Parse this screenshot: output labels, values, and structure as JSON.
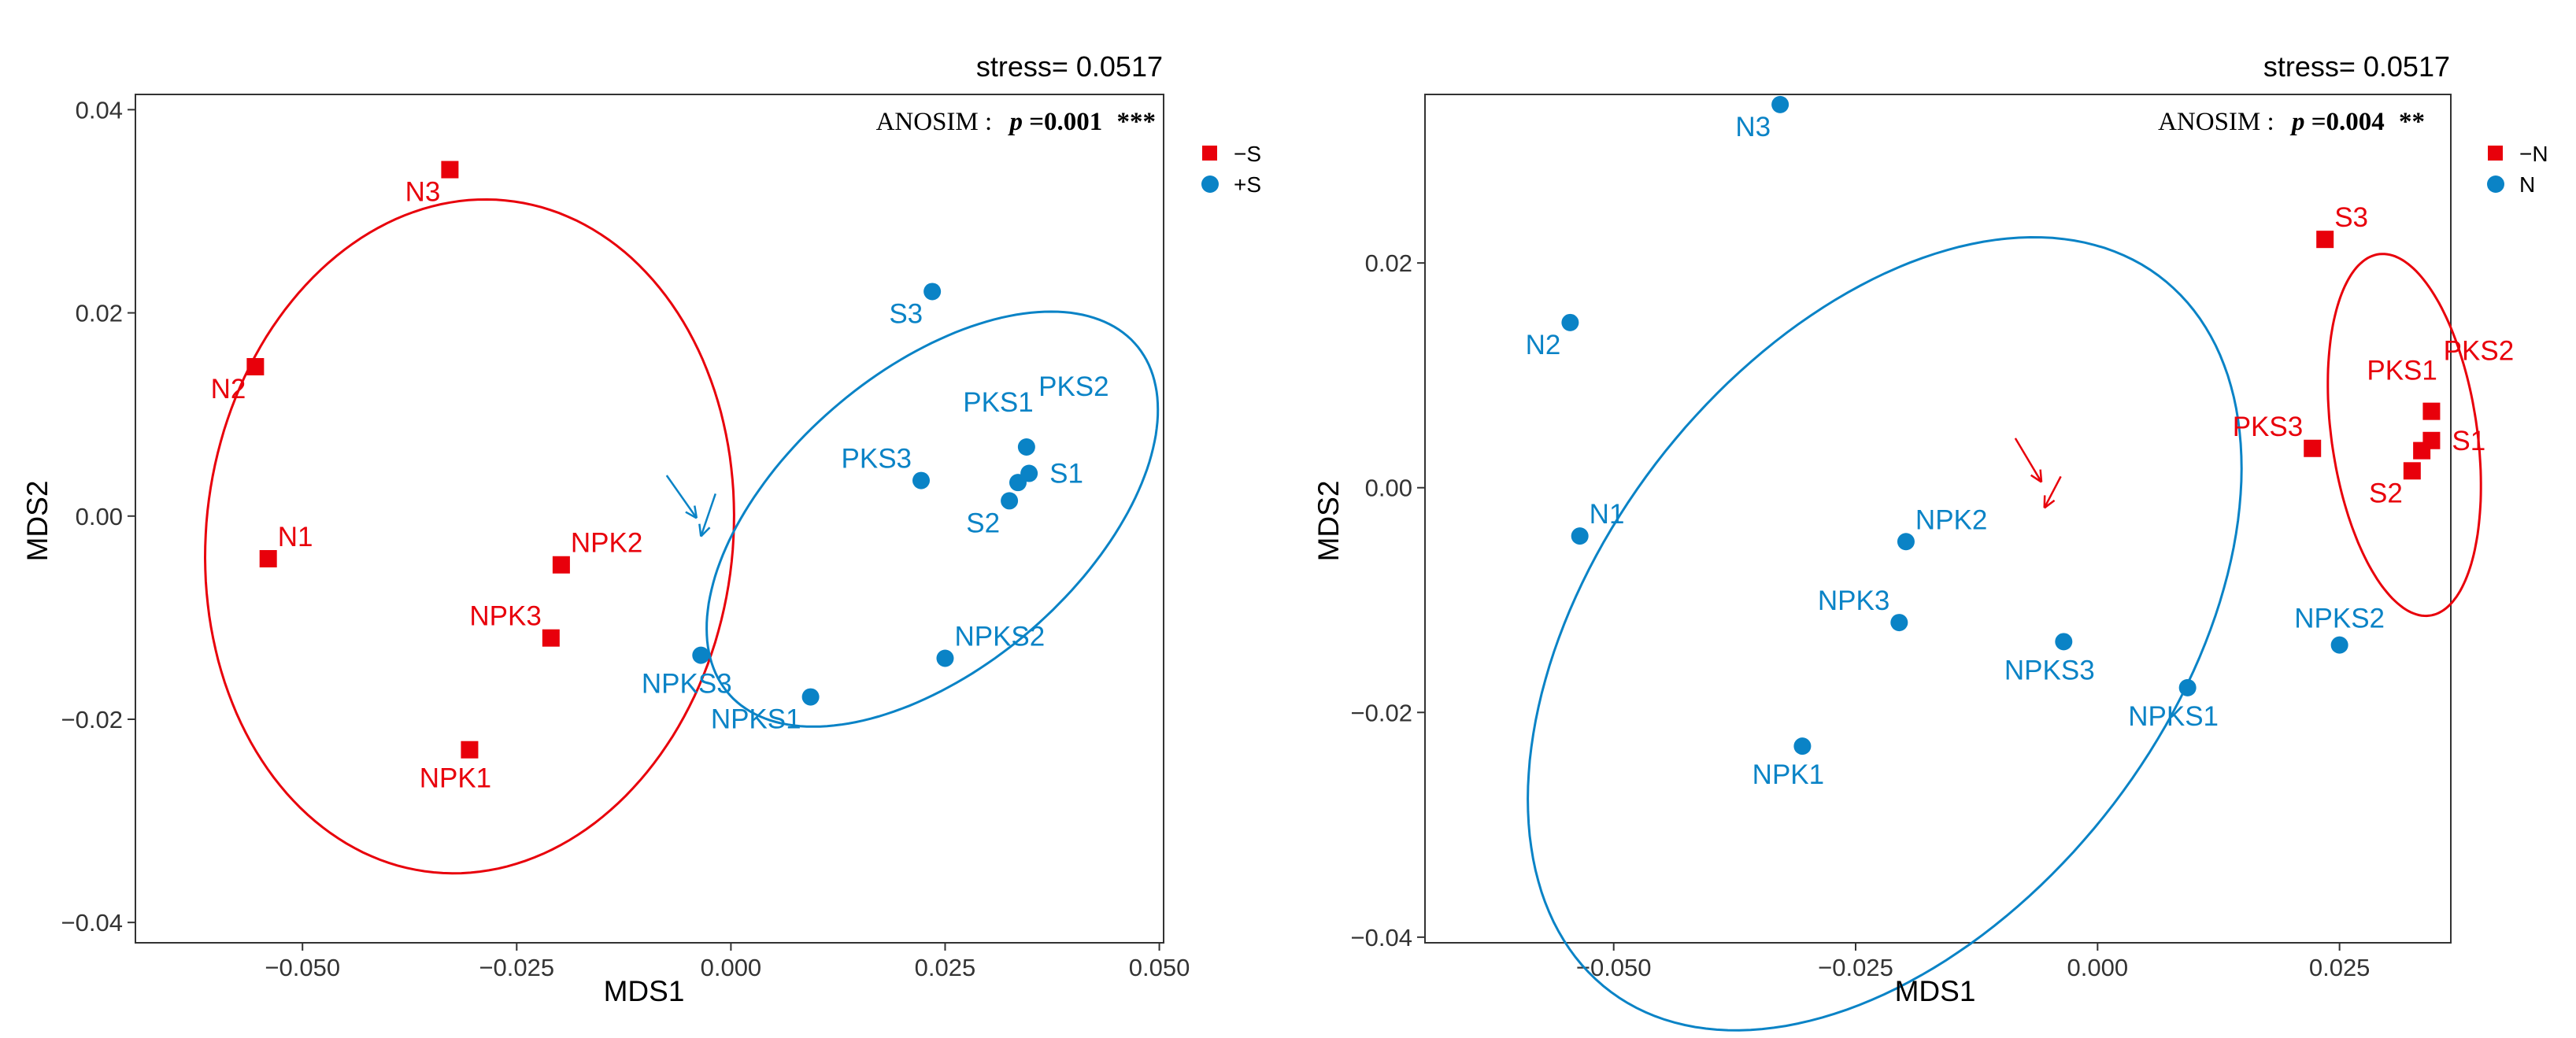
{
  "chart_data": [
    {
      "type": "scatter",
      "subtype": "NMDS",
      "stress_label": "stress= 0.0517",
      "anosim": {
        "prefix": "ANOSIM :",
        "p_symbol": "p",
        "p_text": "=0.001",
        "stars": "***"
      },
      "xlabel": "MDS1",
      "ylabel": "MDS2",
      "xlim": [
        -0.0695,
        0.0505
      ],
      "ylim": [
        -0.042,
        0.0415
      ],
      "xticks": [
        -0.05,
        -0.025,
        0.0,
        0.025,
        0.05
      ],
      "xtick_labels": [
        "−0.050",
        "−0.025",
        "0.000",
        "0.025",
        "0.050"
      ],
      "yticks": [
        -0.04,
        -0.02,
        0.0,
        0.02,
        0.04
      ],
      "ytick_labels": [
        "−0.04",
        "−0.02",
        "0.00",
        "0.02",
        "0.04"
      ],
      "legend_position": "right",
      "groups": [
        {
          "name": "−S",
          "color": "#e8000b",
          "shape": "square",
          "ellipse": {
            "cx": -0.0305,
            "cy": -0.002,
            "rx": 0.0335,
            "ry": 0.0305,
            "angle": -110
          },
          "points": [
            {
              "label": "N1",
              "x": -0.054,
              "y": -0.0042,
              "label_pos": "upper-right"
            },
            {
              "label": "N2",
              "x": -0.0555,
              "y": 0.0147,
              "label_pos": "lower-left"
            },
            {
              "label": "N3",
              "x": -0.0328,
              "y": 0.0341,
              "label_pos": "lower-left"
            },
            {
              "label": "NPK1",
              "x": -0.0305,
              "y": -0.023,
              "label_pos": "below"
            },
            {
              "label": "NPK2",
              "x": -0.0198,
              "y": -0.0048,
              "label_pos": "upper-right"
            },
            {
              "label": "NPK3",
              "x": -0.021,
              "y": -0.012,
              "label_pos": "upper-left"
            }
          ]
        },
        {
          "name": "+S",
          "color": "#0a83c6",
          "shape": "circle",
          "ellipse": {
            "cx": 0.0235,
            "cy": -0.0003,
            "rx": 0.0295,
            "ry": 0.0155,
            "angle": 32
          },
          "points": [
            {
              "label": "S1",
              "x": 0.0348,
              "y": 0.0042,
              "label_pos": "right"
            },
            {
              "label": "S2",
              "x": 0.0325,
              "y": 0.0015,
              "label_pos": "lower-left"
            },
            {
              "label": "S3",
              "x": 0.0235,
              "y": 0.0221,
              "label_pos": "lower-left"
            },
            {
              "label": "PKS1",
              "x": 0.0335,
              "y": 0.0033,
              "label_pos": "far-upper-left"
            },
            {
              "label": "PKS2",
              "x": 0.0345,
              "y": 0.0068,
              "label_pos": "far-upper-right"
            },
            {
              "label": "PKS3",
              "x": 0.0222,
              "y": 0.0035,
              "label_pos": "upper-left"
            },
            {
              "label": "NPKS1",
              "x": 0.0093,
              "y": -0.0178,
              "label_pos": "lower-left"
            },
            {
              "label": "NPKS2",
              "x": 0.025,
              "y": -0.014,
              "label_pos": "upper-right"
            },
            {
              "label": "NPKS3",
              "x": -0.0035,
              "y": -0.0137,
              "label_pos": "below"
            }
          ]
        }
      ],
      "arrows": [
        {
          "color": "#0a83c6",
          "from": [
            -0.0075,
            0.004
          ],
          "to": [
            -0.004,
            -0.0002
          ]
        },
        {
          "color": "#0a83c6",
          "from": [
            -0.0018,
            0.0022
          ],
          "to": [
            -0.0035,
            -0.002
          ]
        }
      ]
    },
    {
      "type": "scatter",
      "subtype": "NMDS",
      "stress_label": "stress= 0.0517",
      "anosim": {
        "prefix": "ANOSIM :",
        "p_symbol": "p",
        "p_text": "=0.004",
        "stars": "**"
      },
      "xlabel": "MDS1",
      "ylabel": "MDS2",
      "xlim": [
        -0.0695,
        0.0365
      ],
      "ylim": [
        -0.0405,
        0.035
      ],
      "xticks": [
        -0.05,
        -0.025,
        0.0,
        0.025
      ],
      "xtick_labels": [
        "−0.050",
        "−0.025",
        "0.000",
        "0.025"
      ],
      "yticks": [
        -0.04,
        -0.02,
        0.0,
        0.02
      ],
      "ytick_labels": [
        "−0.04",
        "−0.02",
        "0.00",
        "0.02"
      ],
      "legend_position": "right",
      "groups": [
        {
          "name": "−N",
          "color": "#e8000b",
          "shape": "square",
          "ellipse": {
            "cx": 0.0317,
            "cy": 0.0047,
            "rx": 0.0163,
            "ry": 0.0075,
            "angle": -80
          },
          "points": [
            {
              "label": "S1",
              "x": 0.0345,
              "y": 0.0042,
              "label_pos": "right"
            },
            {
              "label": "S2",
              "x": 0.0325,
              "y": 0.0015,
              "label_pos": "lower-left"
            },
            {
              "label": "S3",
              "x": 0.0235,
              "y": 0.0221,
              "label_pos": "upper-right"
            },
            {
              "label": "PKS1",
              "x": 0.0335,
              "y": 0.0033,
              "label_pos": "far-upper-left"
            },
            {
              "label": "PKS2",
              "x": 0.0345,
              "y": 0.0068,
              "label_pos": "far-upper-right"
            },
            {
              "label": "PKS3",
              "x": 0.0222,
              "y": 0.0035,
              "label_pos": "upper-left"
            }
          ]
        },
        {
          "name": "N",
          "color": "#0a83c6",
          "shape": "circle",
          "ellipse": {
            "cx": -0.022,
            "cy": -0.013,
            "rx": 0.043,
            "ry": 0.0275,
            "angle": 42
          },
          "points": [
            {
              "label": "N1",
              "x": -0.0535,
              "y": -0.0043,
              "label_pos": "upper-right"
            },
            {
              "label": "N2",
              "x": -0.0545,
              "y": 0.0147,
              "label_pos": "lower-left"
            },
            {
              "label": "N3",
              "x": -0.0328,
              "y": 0.0341,
              "label_pos": "lower-left"
            },
            {
              "label": "NPK1",
              "x": -0.0305,
              "y": -0.023,
              "label_pos": "below"
            },
            {
              "label": "NPK2",
              "x": -0.0198,
              "y": -0.0048,
              "label_pos": "upper-right"
            },
            {
              "label": "NPK3",
              "x": -0.0205,
              "y": -0.012,
              "label_pos": "upper-left"
            },
            {
              "label": "NPKS1",
              "x": 0.0093,
              "y": -0.0178,
              "label_pos": "below"
            },
            {
              "label": "NPKS2",
              "x": 0.025,
              "y": -0.014,
              "label_pos": "upper-center"
            },
            {
              "label": "NPKS3",
              "x": -0.0035,
              "y": -0.0137,
              "label_pos": "below"
            }
          ]
        }
      ],
      "arrows": [
        {
          "color": "#e8000b",
          "from": [
            -0.0085,
            0.0044
          ],
          "to": [
            -0.0058,
            0.0005
          ]
        },
        {
          "color": "#e8000b",
          "from": [
            -0.0038,
            0.001
          ],
          "to": [
            -0.0055,
            -0.0018
          ]
        }
      ]
    }
  ]
}
